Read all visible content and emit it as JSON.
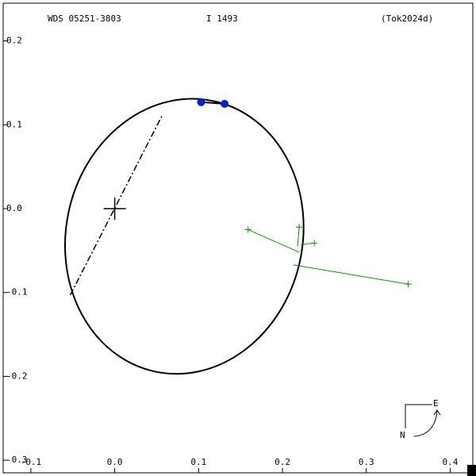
{
  "chart_data": {
    "type": "orbit",
    "title": "WDS 05251-3803",
    "subtitle": "I  1493",
    "reference": "(Tok2024d)",
    "xlim": [
      -0.133,
      0.427
    ],
    "ylim": [
      -0.315,
      0.245
    ],
    "xticks": [
      -0.1,
      {
        "value": 0,
        "label": "0.0"
      },
      0.1,
      0.2,
      0.3,
      0.4
    ],
    "yticks": [
      0.2,
      0.1,
      {
        "value": 0,
        "label": "0.0"
      },
      -0.1,
      -0.2,
      -0.3
    ],
    "orbit": {
      "center": [
        0.083,
        -0.033
      ],
      "semi_axes": [
        0.141,
        0.165
      ],
      "angle": 12.5,
      "color": "#000000"
    },
    "node_line": {
      "x": [
        -0.053,
        0.057
      ],
      "y": [
        -0.103,
        0.112
      ]
    },
    "primary": {
      "x": 0,
      "y": 0
    },
    "predicted": {
      "x": [
        0.103,
        0.131
      ],
      "y": [
        0.127,
        0.125
      ],
      "color": "#0022cc"
    },
    "observations": {
      "x": [
        0.159,
        0.22,
        0.238,
        0.35
      ],
      "y": [
        -0.025,
        -0.022,
        -0.041,
        -0.09
      ],
      "fit_x": [
        0.22,
        0.218,
        0.222,
        0.213
      ],
      "fit_y": [
        -0.052,
        -0.045,
        -0.043,
        -0.067
      ],
      "color": "#009900"
    },
    "compass": {
      "east": "E",
      "north": "N"
    }
  }
}
